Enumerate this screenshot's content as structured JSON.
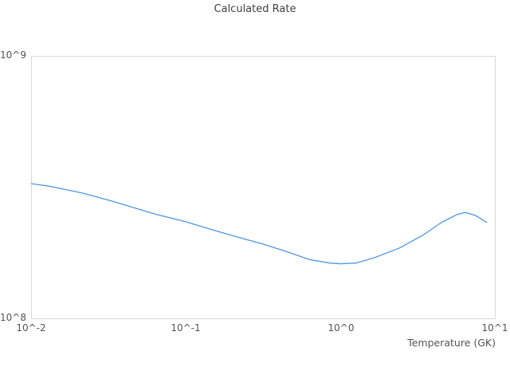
{
  "chart_data": {
    "type": "line",
    "title": "Calculated Rate",
    "xlabel": "Temperature (GK)",
    "ylabel": "",
    "xscale": "log",
    "yscale": "log",
    "xlim": [
      0.01,
      10
    ],
    "ylim": [
      100000000,
      1000000000
    ],
    "x_ticks": [
      "10^-2",
      "10^-1",
      "10^0",
      "10^1"
    ],
    "y_ticks": [
      "10^8",
      "10^9"
    ],
    "grid": false,
    "legend_position": "none",
    "line_color": "#4f97dd",
    "border_color": "#d9d9d9",
    "series": [
      {
        "name": "calculated-rate",
        "x": [
          0.01,
          0.013,
          0.0164,
          0.021,
          0.026,
          0.033,
          0.045,
          0.064,
          0.1,
          0.145,
          0.22,
          0.31,
          0.45,
          0.63,
          0.85,
          1.0,
          1.25,
          1.66,
          2.4,
          3.4,
          4.5,
          5.7,
          6.4,
          7.5,
          8.8
        ],
        "y": [
          327000000,
          320000000,
          311000000,
          302000000,
          292000000,
          281000000,
          266000000,
          250000000,
          234000000,
          219000000,
          204000000,
          193000000,
          180000000,
          168000000,
          163000000,
          162000000,
          163000000,
          171000000,
          186000000,
          208000000,
          233000000,
          250000000,
          254000000,
          247000000,
          233000000
        ]
      }
    ]
  }
}
